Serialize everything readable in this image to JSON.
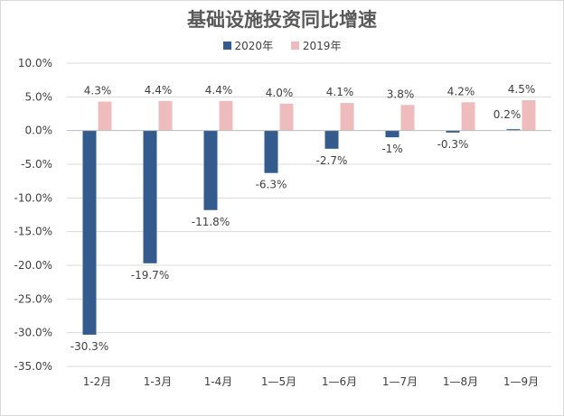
{
  "chart_data": {
    "type": "bar",
    "title": "基础设施投资同比增速",
    "categories": [
      "1-2月",
      "1-3月",
      "1-4月",
      "1—5月",
      "1—6月",
      "1—7月",
      "1—8月",
      "1—9月"
    ],
    "series": [
      {
        "name": "2020年",
        "color": "#335b8e",
        "values": [
          -30.3,
          -19.7,
          -11.8,
          -6.3,
          -2.7,
          -1,
          -0.3,
          0.2
        ],
        "labels": [
          "-30.3%",
          "-19.7%",
          "-11.8%",
          "-6.3%",
          "-2.7%",
          "-1%",
          "-0.3%",
          "0.2%"
        ]
      },
      {
        "name": "2019年",
        "color": "#efbcbd",
        "values": [
          4.3,
          4.4,
          4.4,
          4.0,
          4.1,
          3.8,
          4.2,
          4.5
        ],
        "labels": [
          "4.3%",
          "4.4%",
          "4.4%",
          "4.0%",
          "4.1%",
          "3.8%",
          "4.2%",
          "4.5%"
        ]
      }
    ],
    "ylim": [
      -35,
      10
    ],
    "yticks": [
      10,
      5,
      0,
      -5,
      -10,
      -15,
      -20,
      -25,
      -30,
      -35
    ],
    "ytick_labels": [
      "10.0%",
      "5.0%",
      "0.0%",
      "-5.0%",
      "-10.0%",
      "-15.0%",
      "-20.0%",
      "-25.0%",
      "-30.0%",
      "-35.0%"
    ],
    "grid": true,
    "legend_position": "top-center"
  }
}
